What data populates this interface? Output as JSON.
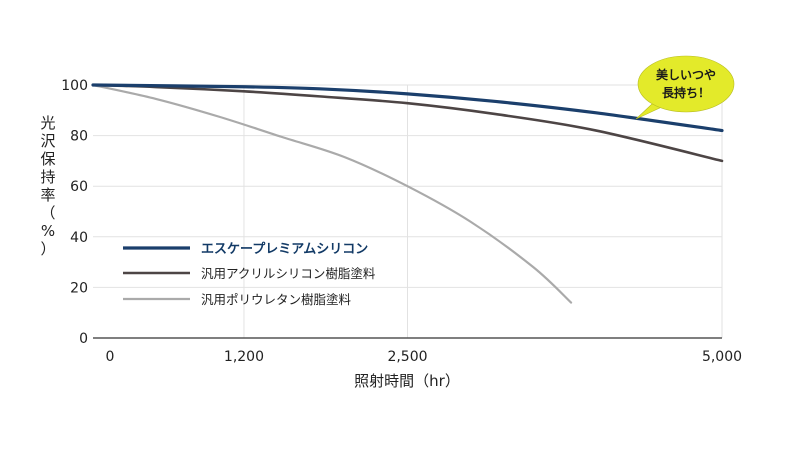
{
  "chart_data": {
    "type": "line",
    "xlabel": "照射時間（hr）",
    "ylabel": "光沢保持率（%）",
    "x_ticks": [
      {
        "value": 0,
        "label": "0"
      },
      {
        "value": 1200,
        "label": "1,200"
      },
      {
        "value": 2500,
        "label": "2,500"
      },
      {
        "value": 5000,
        "label": "5,000"
      }
    ],
    "y_ticks": [
      0,
      20,
      40,
      60,
      80,
      100
    ],
    "xlim": [
      0,
      5000
    ],
    "ylim": [
      0,
      100
    ],
    "grid": true,
    "series": [
      {
        "name": "エスケープレミアムシリコン",
        "color": "#1b3f6c",
        "x": [
          0,
          1200,
          1800,
          2500,
          3200,
          4000,
          5000
        ],
        "y": [
          100,
          99.3,
          98.5,
          96.5,
          93.5,
          89,
          82
        ]
      },
      {
        "name": "汎用アクリルシリコン樹脂塗料",
        "color": "#4d4545",
        "x": [
          0,
          500,
          1200,
          1800,
          2500,
          3200,
          4000,
          5000
        ],
        "y": [
          100,
          99.2,
          97.5,
          95.5,
          92.8,
          88.5,
          82,
          70
        ]
      },
      {
        "name": "汎用ポリウレタン樹脂塗料",
        "color": "#aaaaaa",
        "x": [
          0,
          500,
          1000,
          1500,
          2000,
          2500,
          3000,
          3500,
          3800
        ],
        "y": [
          100,
          94.5,
          87.5,
          79.5,
          71.5,
          60,
          46,
          28,
          14
        ]
      }
    ],
    "legend": "lower-left",
    "annotation": {
      "lines": [
        "美しいつや",
        "長持ち！"
      ],
      "color": "#e3ea2a"
    }
  }
}
